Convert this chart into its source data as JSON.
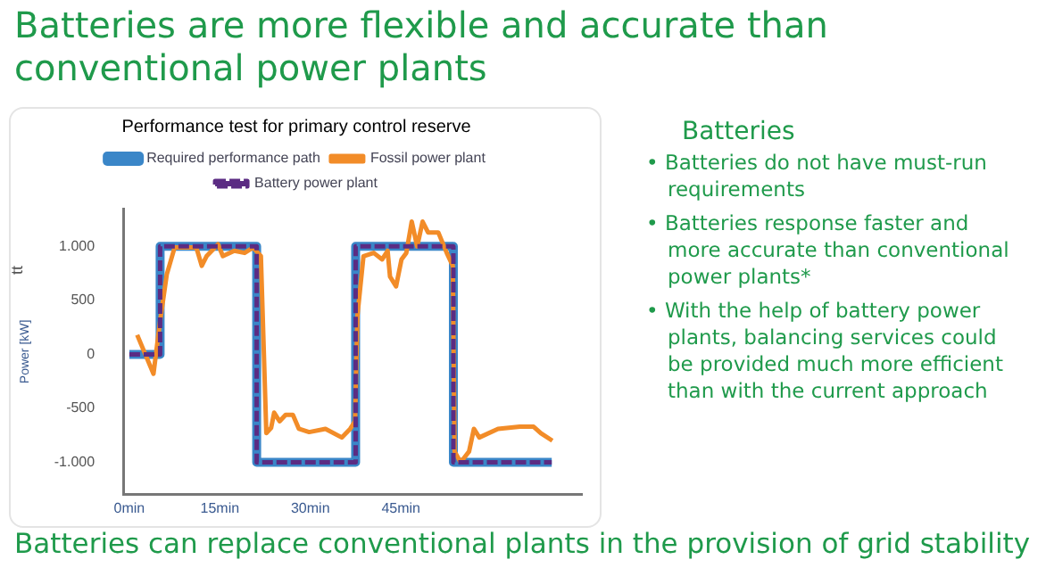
{
  "chart_data": {
    "type": "line",
    "title": "Batteries are more flexible and accurate than conventional power plants",
    "subtitle": "Performance test for primary control reserve",
    "ylabel": "Power [kW]",
    "annotations": [
      "tt",
      "Batteries",
      "• Batteries do not have must-run requirements",
      "• Batteries response faster and more accurate than conventional  power plants*",
      "• With the help of battery power plants, balancing services could be provided much more efficient than with the current approach",
      "Batteries can replace conventional plants in the provision of grid stability"
    ],
    "xlim": [
      -1,
      75
    ],
    "xticks": [
      {
        "value": 0,
        "label": "0min"
      },
      {
        "value": 15,
        "label": "15min"
      },
      {
        "value": 30,
        "label": "30min"
      },
      {
        "value": 45,
        "label": "45min"
      }
    ],
    "ylim": [
      -1300,
      1350
    ],
    "yticks": [
      {
        "value": -1000,
        "label": "-1.000"
      },
      -500,
      0,
      500,
      {
        "value": 1000,
        "label": "1.000"
      }
    ],
    "legend": "top",
    "grid": false,
    "series": [
      {
        "name": "Required performance path",
        "color": "#3a86c8",
        "line_style": "solid",
        "x": [
          0,
          5.1,
          5.1,
          21.1,
          21.1,
          37.5,
          37.5,
          53.7,
          53.7,
          70.0
        ],
        "values": [
          0,
          0,
          1000,
          1000,
          -1000,
          -1000,
          1000,
          1000,
          -1000,
          -1000
        ]
      },
      {
        "name": "Fossil power plant",
        "color": "#f28c28",
        "line_style": "solid",
        "x": [
          1.3,
          4.0,
          5.1,
          6.2,
          7.5,
          9.3,
          11.1,
          12.0,
          12.8,
          14.7,
          15.5,
          17.4,
          19.1,
          20.5,
          21.8,
          22.7,
          23.5,
          24.0,
          24.9,
          25.9,
          27.1,
          28.1,
          29.8,
          32.5,
          35.2,
          36.6,
          37.4,
          37.8,
          38.8,
          40.5,
          41.9,
          42.8,
          43.2,
          44.2,
          45.1,
          45.9,
          46.8,
          47.7,
          48.6,
          49.5,
          51.2,
          52.6,
          53.6,
          53.9,
          54.9,
          56.3,
          57.1,
          58.0,
          61.1,
          64.7,
          67.0,
          68.2,
          70.1
        ],
        "values": [
          180,
          -180,
          310,
          740,
          990,
          990,
          990,
          820,
          910,
          1020,
          910,
          960,
          940,
          990,
          910,
          -730,
          -680,
          -540,
          -620,
          -560,
          -560,
          -690,
          -720,
          -690,
          -770,
          -690,
          -620,
          360,
          910,
          940,
          880,
          960,
          720,
          630,
          880,
          940,
          1230,
          1000,
          1230,
          1130,
          1130,
          940,
          820,
          -900,
          -1000,
          -900,
          -690,
          -770,
          -690,
          -670,
          -670,
          -730,
          -800
        ]
      },
      {
        "name": "Battery power plant",
        "color": "#5b2c83",
        "line_style": "dashed",
        "x": [
          0,
          5.1,
          5.1,
          21.1,
          21.1,
          37.5,
          37.5,
          53.7,
          53.7,
          70.0
        ],
        "values": [
          0,
          0,
          1000,
          1000,
          -1000,
          -1000,
          1000,
          1000,
          -1000,
          -1000
        ]
      }
    ]
  }
}
